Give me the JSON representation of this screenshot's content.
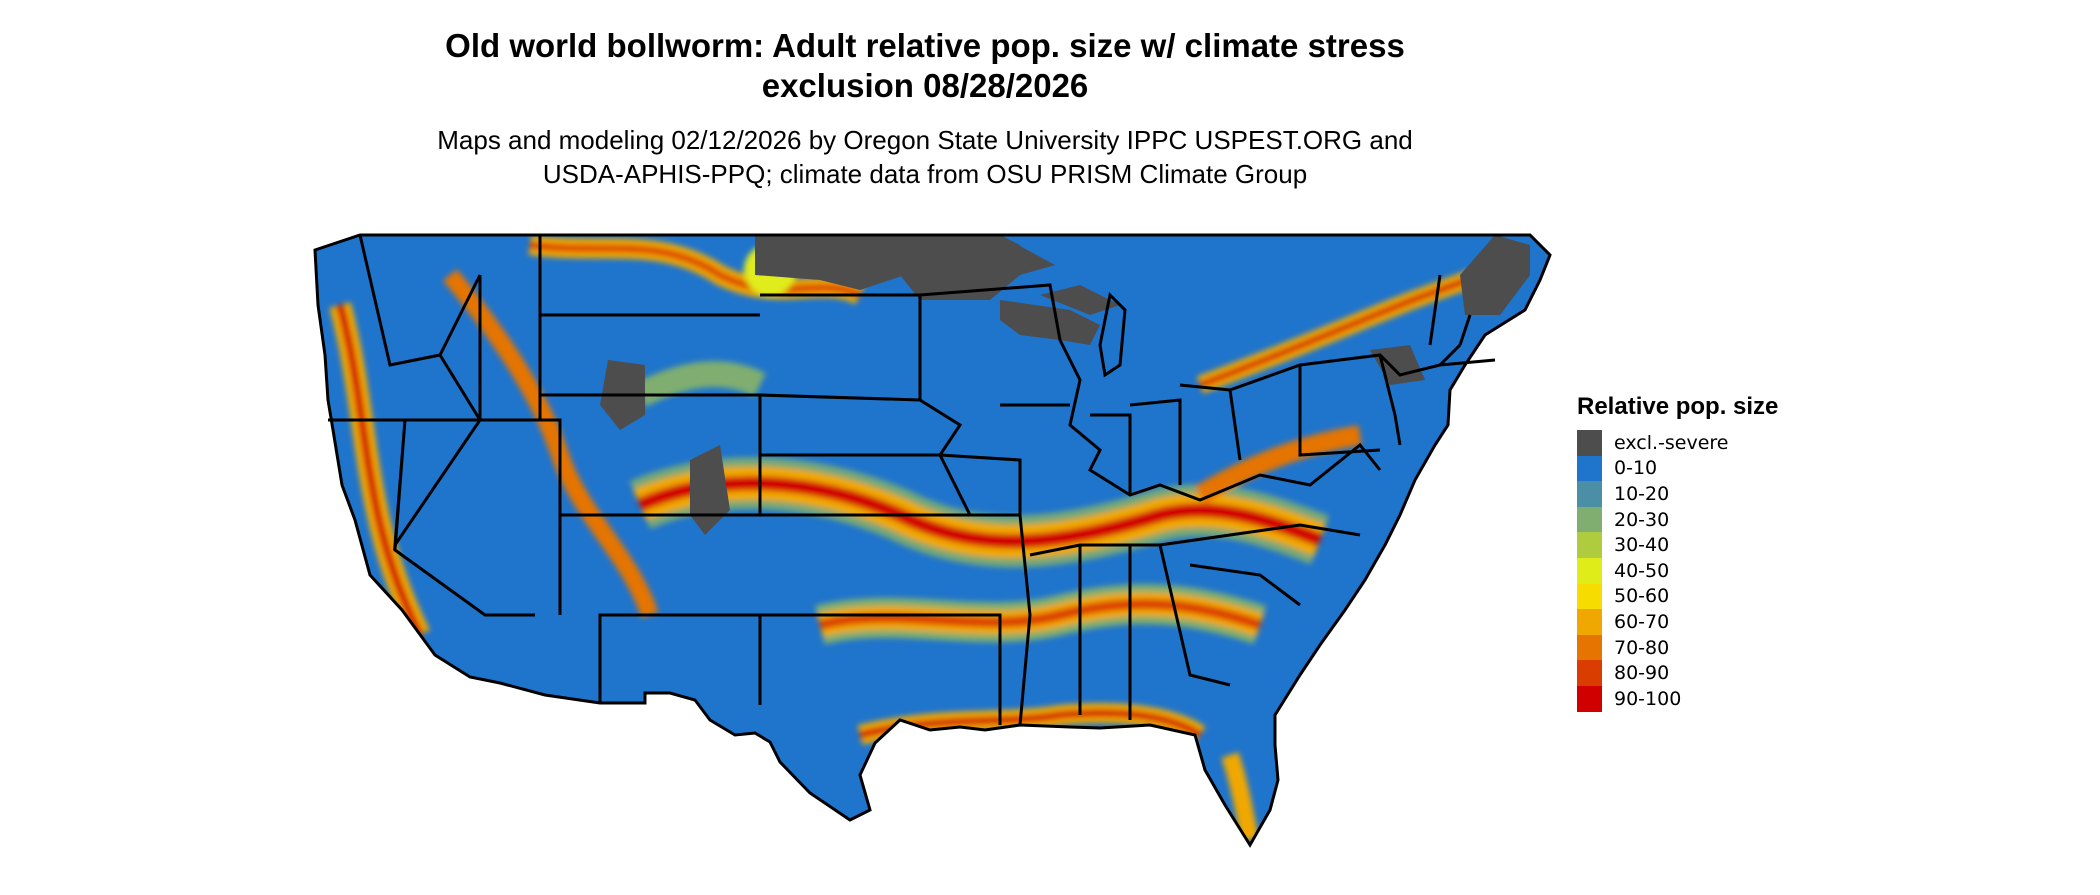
{
  "title": {
    "line1": "Old world bollworm: Adult relative pop. size w/ climate stress",
    "line2": "exclusion 08/28/2026"
  },
  "subtitle": {
    "line1": "Maps and modeling 02/12/2026 by Oregon State University IPPC USPEST.ORG and",
    "line2": "USDA-APHIS-PPQ; climate data from OSU PRISM Climate Group"
  },
  "legend": {
    "title": "Relative pop. size",
    "items": [
      {
        "label": "excl.-severe",
        "color": "#4d4d4d"
      },
      {
        "label": "0-10",
        "color": "#1f74cc"
      },
      {
        "label": "10-20",
        "color": "#4a8fa6"
      },
      {
        "label": "20-30",
        "color": "#7fae70"
      },
      {
        "label": "30-40",
        "color": "#aecc3e"
      },
      {
        "label": "40-50",
        "color": "#e0ec1a"
      },
      {
        "label": "50-60",
        "color": "#f7dc00"
      },
      {
        "label": "60-70",
        "color": "#f0a800"
      },
      {
        "label": "70-80",
        "color": "#e57400"
      },
      {
        "label": "80-90",
        "color": "#db3d00"
      },
      {
        "label": "90-100",
        "color": "#d10000"
      }
    ]
  }
}
